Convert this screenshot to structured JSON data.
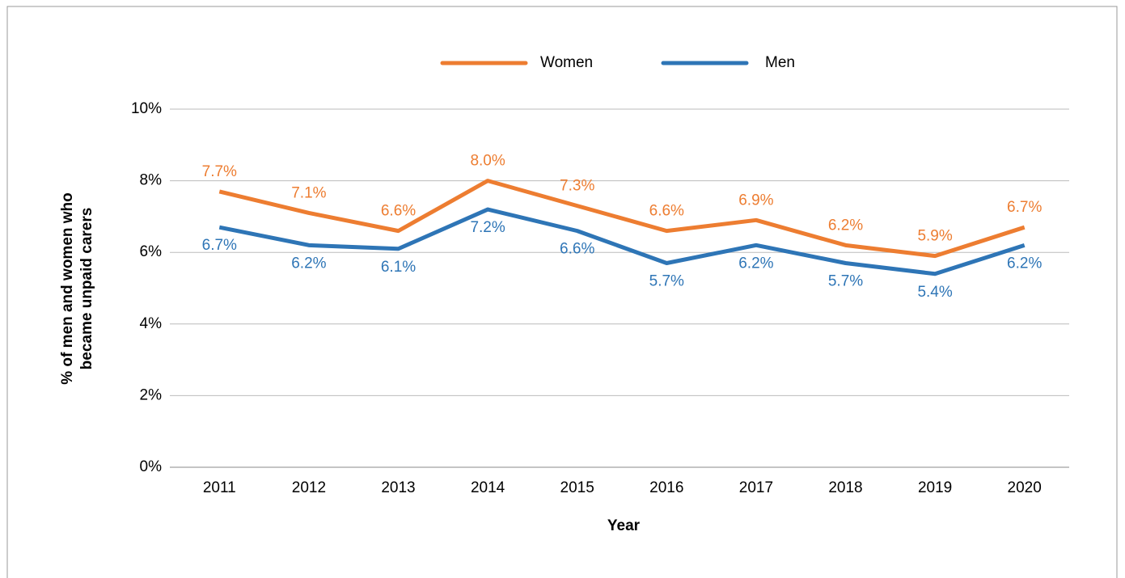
{
  "chart_data": {
    "type": "line",
    "categories": [
      "2011",
      "2012",
      "2013",
      "2014",
      "2015",
      "2016",
      "2017",
      "2018",
      "2019",
      "2020"
    ],
    "series": [
      {
        "name": "Women",
        "color": "#ed7d31",
        "values": [
          7.7,
          7.1,
          6.6,
          8.0,
          7.3,
          6.6,
          6.9,
          6.2,
          5.9,
          6.7
        ],
        "value_labels": [
          "7.7%",
          "7.1%",
          "6.6%",
          "8.0%",
          "7.3%",
          "6.6%",
          "6.9%",
          "6.2%",
          "5.9%",
          "6.7%"
        ]
      },
      {
        "name": "Men",
        "color": "#2e75b6",
        "values": [
          6.7,
          6.2,
          6.1,
          7.2,
          6.6,
          5.7,
          6.2,
          5.7,
          5.4,
          6.2
        ],
        "value_labels": [
          "6.7%",
          "6.2%",
          "6.1%",
          "7.2%",
          "6.6%",
          "5.7%",
          "6.2%",
          "5.7%",
          "5.4%",
          "6.2%"
        ]
      }
    ],
    "xlabel": "Year",
    "ylabel": [
      "% of men and women who",
      "became unpaid carers"
    ],
    "ylim": [
      0,
      10
    ],
    "yticks": [
      {
        "value": 0,
        "label": "0%"
      },
      {
        "value": 2,
        "label": "2%"
      },
      {
        "value": 4,
        "label": "4%"
      },
      {
        "value": 6,
        "label": "6%"
      },
      {
        "value": 8,
        "label": "8%"
      },
      {
        "value": 10,
        "label": "10%"
      }
    ],
    "grid": true,
    "legend": "top"
  }
}
